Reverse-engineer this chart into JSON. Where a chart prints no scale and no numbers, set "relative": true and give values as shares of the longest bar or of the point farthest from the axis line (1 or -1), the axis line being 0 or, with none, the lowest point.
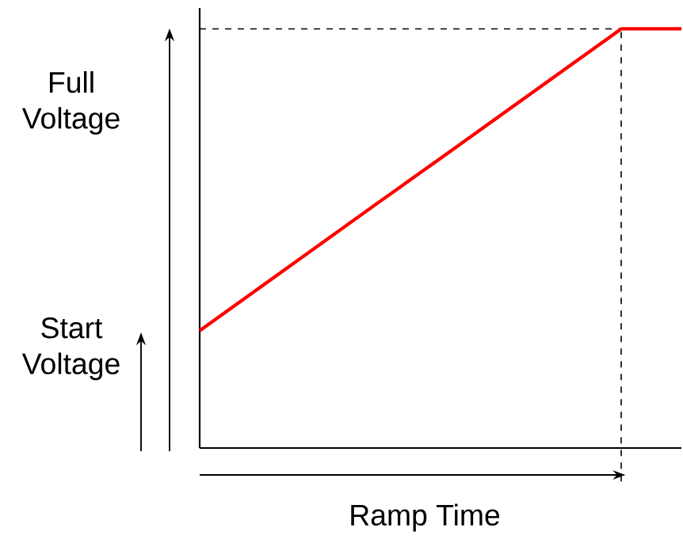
{
  "chart_data": {
    "type": "line",
    "relative": true,
    "xlabel": "Ramp Time",
    "annotations": [
      "Full\nVoltage",
      "Start\nVoltage"
    ],
    "categories": [
      null,
      null,
      null,
      null,
      null,
      null,
      null,
      null,
      null
    ],
    "series": [
      {
        "color": "#ff0000",
        "values": [
          0.28,
          0.383,
          0.486,
          0.589,
          0.691,
          0.794,
          0.897,
          1,
          1
        ]
      }
    ],
    "ref_lines": [
      {
        "axis": "y",
        "value": 1,
        "line_style": "dashed",
        "color": "#000000"
      }
    ],
    "marker": "none",
    "line_style": "solid"
  }
}
